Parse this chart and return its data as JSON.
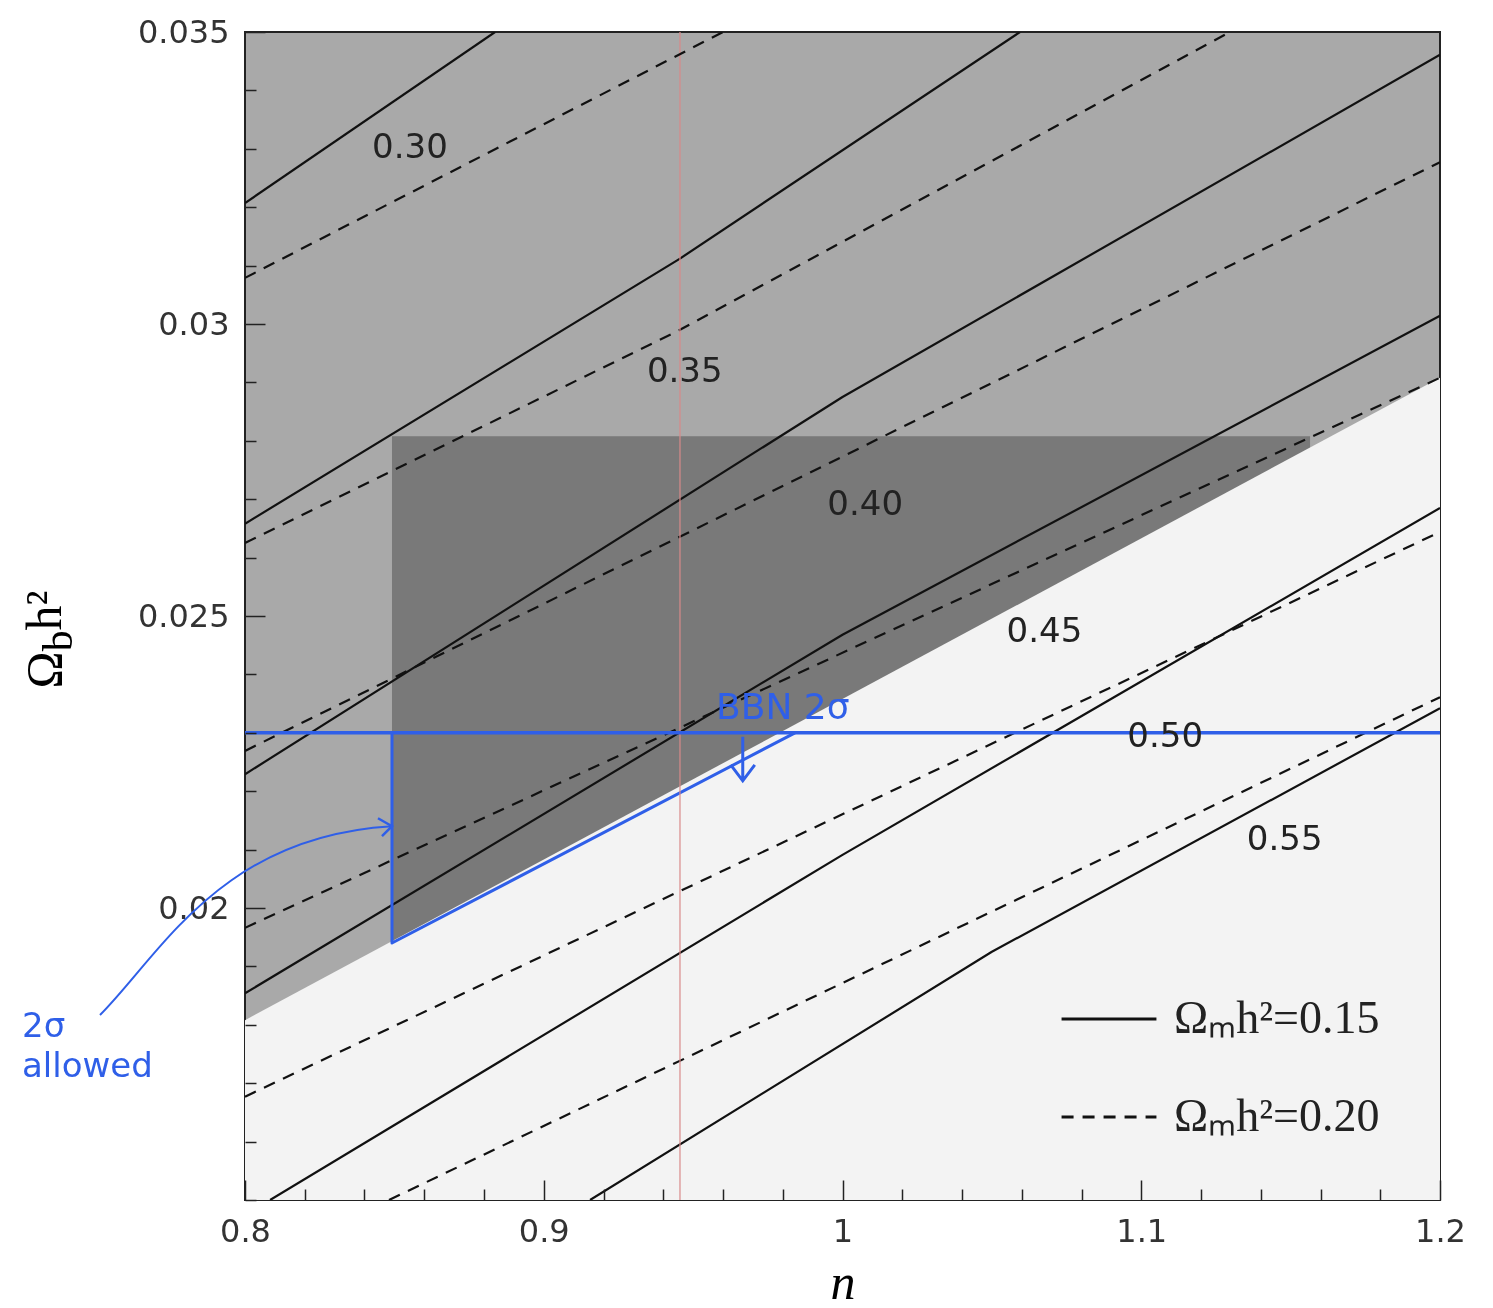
{
  "chart_data": {
    "type": "line",
    "xlabel": "n",
    "ylabel": "Ω$_{b}$h²",
    "xlim": [
      0.8,
      1.2
    ],
    "ylim": [
      0.015,
      0.035
    ],
    "xticks": [
      0.8,
      {
        "value": 0.82,
        "label": null
      },
      {
        "value": 0.84,
        "label": null
      },
      {
        "value": 0.86,
        "label": null
      },
      {
        "value": 0.88,
        "label": null
      },
      0.9,
      {
        "value": 0.92,
        "label": null
      },
      {
        "value": 0.94,
        "label": null
      },
      {
        "value": 0.96,
        "label": null
      },
      {
        "value": 0.98,
        "label": null
      },
      1,
      {
        "value": 1.02,
        "label": null
      },
      {
        "value": 1.04,
        "label": null
      },
      {
        "value": 1.06,
        "label": null
      },
      {
        "value": 1.08,
        "label": null
      },
      1.1,
      {
        "value": 1.12,
        "label": null
      },
      {
        "value": 1.14,
        "label": null
      },
      {
        "value": 1.16,
        "label": null
      },
      {
        "value": 1.18,
        "label": null
      },
      1.2
    ],
    "yticks": [
      {
        "value": 0.015,
        "label": null
      },
      {
        "value": 0.016,
        "label": null
      },
      {
        "value": 0.017,
        "label": null
      },
      {
        "value": 0.018,
        "label": null
      },
      {
        "value": 0.019,
        "label": null
      },
      0.02,
      {
        "value": 0.021,
        "label": null
      },
      {
        "value": 0.022,
        "label": null
      },
      {
        "value": 0.023,
        "label": null
      },
      {
        "value": 0.024,
        "label": null
      },
      0.025,
      {
        "value": 0.026,
        "label": null
      },
      {
        "value": 0.027,
        "label": null
      },
      {
        "value": 0.028,
        "label": null
      },
      {
        "value": 0.029,
        "label": null
      },
      0.03,
      {
        "value": 0.031,
        "label": null
      },
      {
        "value": 0.032,
        "label": null
      },
      {
        "value": 0.033,
        "label": null
      },
      {
        "value": 0.034,
        "label": null
      },
      0.035
    ],
    "legend": "bottom right",
    "series": [
      {
        "type": "area",
        "color": "#797979",
        "x": [
          0.8492,
          1.1565
        ],
        "values": [
          0.02808,
          0.02808
        ]
      },
      {
        "type": "area",
        "color": "#f3f3f3",
        "x": [
          0.8,
          1.2
        ],
        "values": [
          0.01808,
          0.02908
        ]
      },
      {
        "name": "Ωₘh²=0.15",
        "color": "#111111",
        "line_style": "solid",
        "x": [
          0.8,
          0.8837
        ],
        "values": [
          0.03207,
          0.035
        ]
      },
      {
        "color": "#111111",
        "line_style": "solid",
        "x": [
          0.8,
          0.9456,
          1.0594
        ],
        "values": [
          0.02658,
          0.03112,
          0.035
        ]
      },
      {
        "color": "#111111",
        "line_style": "solid",
        "x": [
          0.8,
          1.0,
          1.2
        ],
        "values": [
          0.02229,
          0.02875,
          0.03461
        ]
      },
      {
        "color": "#111111",
        "line_style": "solid",
        "x": [
          0.8,
          1.0,
          1.2
        ],
        "values": [
          0.01854,
          0.02468,
          0.03014
        ]
      },
      {
        "color": "#111111",
        "line_style": "solid",
        "x": [
          0.8084,
          1.0,
          1.2
        ],
        "values": [
          0.015,
          0.02091,
          0.02685
        ]
      },
      {
        "color": "#111111",
        "line_style": "solid",
        "x": [
          0.9155,
          1.05,
          1.2
        ],
        "values": [
          0.015,
          0.01925,
          0.02342
        ]
      },
      {
        "name": "Ωₘh²=0.20",
        "color": "#111111",
        "line_style": "dashed",
        "x": [
          0.8,
          0.96
        ],
        "values": [
          0.03079,
          0.035
        ]
      },
      {
        "color": "#111111",
        "line_style": "dashed",
        "x": [
          0.8,
          0.9456,
          1.1297
        ],
        "values": [
          0.02625,
          0.0299,
          0.035
        ]
      },
      {
        "color": "#111111",
        "line_style": "dashed",
        "x": [
          0.8,
          1.2
        ],
        "values": [
          0.02269,
          0.03277
        ]
      },
      {
        "color": "#111111",
        "line_style": "dashed",
        "x": [
          0.8,
          1.2
        ],
        "values": [
          0.01966,
          0.02908
        ]
      },
      {
        "color": "#111111",
        "line_style": "dashed",
        "x": [
          0.8,
          1.2
        ],
        "values": [
          0.01677,
          0.02644
        ]
      },
      {
        "color": "#111111",
        "line_style": "dashed",
        "x": [
          0.8482,
          1.2
        ],
        "values": [
          0.015,
          0.02361
        ]
      },
      {
        "color": "#2f5fe8",
        "line_style": "solid",
        "x": [
          0.8492,
          0.8492,
          0.9841
        ],
        "values": [
          0.023,
          0.0194,
          0.023
        ]
      }
    ],
    "ref_lines": [
      {
        "axis": "x",
        "value": 0.9456,
        "color": "#d98a8a"
      },
      {
        "axis": "y",
        "value": 0.023,
        "label": "BBN 2σ",
        "color": "#2f5fe8"
      }
    ],
    "annotations": [
      "0.30",
      "0.35",
      "0.40",
      "0.45",
      "0.50",
      "0.55",
      {
        "text": "2σ allowed",
        "x": 0.8492,
        "y": 0.0214
      }
    ]
  }
}
